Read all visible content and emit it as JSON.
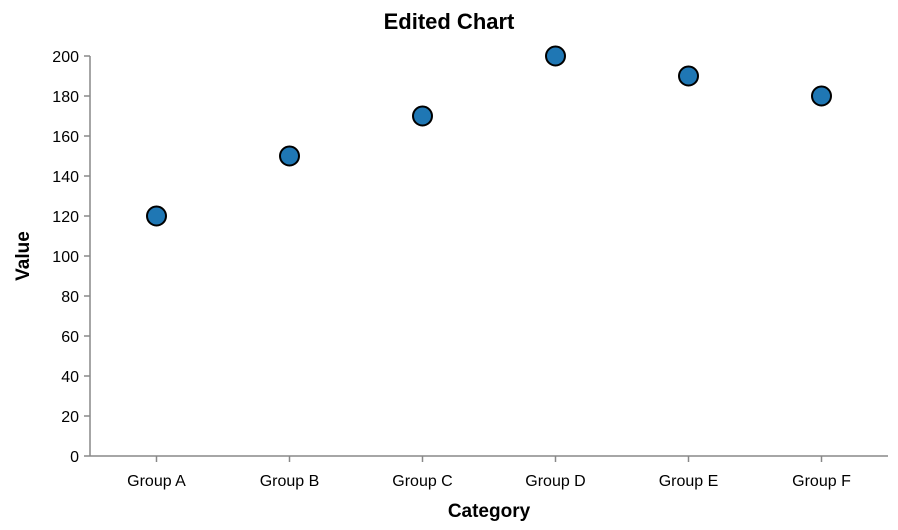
{
  "chart_data": {
    "type": "scatter",
    "title": "Edited Chart",
    "xlabel": "Category",
    "ylabel": "Value",
    "categories": [
      "Group A",
      "Group B",
      "Group C",
      "Group D",
      "Group E",
      "Group F"
    ],
    "values": [
      120,
      150,
      170,
      200,
      190,
      180
    ],
    "ylim": [
      0,
      200
    ],
    "yticks": [
      0,
      20,
      40,
      60,
      80,
      100,
      120,
      140,
      160,
      180,
      200
    ],
    "grid": false,
    "legend": "none",
    "colors": {
      "point_fill": "#1f77b4",
      "point_stroke": "#000000",
      "axis": "#888888"
    }
  }
}
